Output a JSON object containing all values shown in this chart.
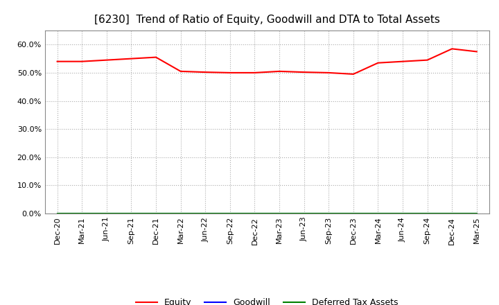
{
  "title": "[6230]  Trend of Ratio of Equity, Goodwill and DTA to Total Assets",
  "x_labels": [
    "Dec-20",
    "Mar-21",
    "Jun-21",
    "Sep-21",
    "Dec-21",
    "Mar-22",
    "Jun-22",
    "Sep-22",
    "Dec-22",
    "Mar-23",
    "Jun-23",
    "Sep-23",
    "Dec-23",
    "Mar-24",
    "Jun-24",
    "Sep-24",
    "Dec-24",
    "Mar-25"
  ],
  "equity": [
    0.54,
    0.54,
    0.545,
    0.55,
    0.555,
    0.505,
    0.502,
    0.5,
    0.5,
    0.505,
    0.502,
    0.5,
    0.495,
    0.535,
    0.54,
    0.545,
    0.585,
    0.575
  ],
  "goodwill": [
    0.0,
    0.0,
    0.0,
    0.0,
    0.0,
    0.0,
    0.0,
    0.0,
    0.0,
    0.0,
    0.0,
    0.0,
    0.0,
    0.0,
    0.0,
    0.0,
    0.0,
    0.0
  ],
  "dta": [
    0.0,
    0.0,
    0.0,
    0.0,
    0.0,
    0.0,
    0.0,
    0.0,
    0.0,
    0.0,
    0.0,
    0.0,
    0.0,
    0.0,
    0.0,
    0.0,
    0.0,
    0.0
  ],
  "equity_color": "#ff0000",
  "goodwill_color": "#0000ff",
  "dta_color": "#008000",
  "ylim": [
    0.0,
    0.65
  ],
  "yticks": [
    0.0,
    0.1,
    0.2,
    0.3,
    0.4,
    0.5,
    0.6
  ],
  "background_color": "#ffffff",
  "grid_color": "#aaaaaa",
  "title_fontsize": 11,
  "tick_fontsize": 8,
  "legend_labels": [
    "Equity",
    "Goodwill",
    "Deferred Tax Assets"
  ]
}
